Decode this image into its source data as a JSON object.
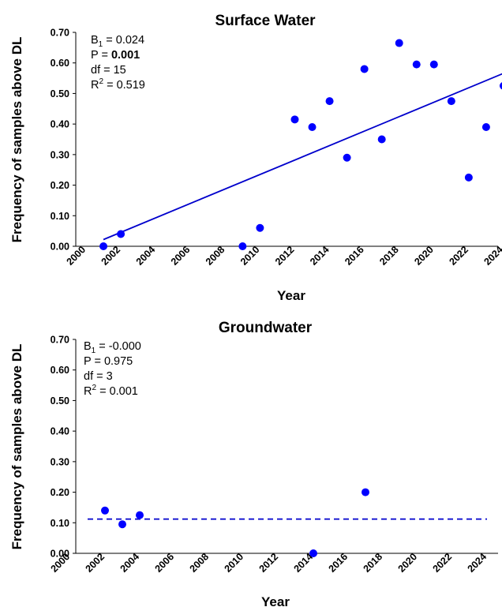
{
  "chart_data": [
    {
      "type": "scatter",
      "title": "Surface Water",
      "xlabel": "Year",
      "ylabel": "Frequency of samples above DL",
      "xlim": [
        2000,
        2024
      ],
      "ylim": [
        0,
        0.7
      ],
      "x_ticks": [
        "2000",
        "2002",
        "2004",
        "2006",
        "2008",
        "2010",
        "2012",
        "2014",
        "2016",
        "2018",
        "2020",
        "2022",
        "2024"
      ],
      "y_ticks": [
        "0.00",
        "0.10",
        "0.20",
        "0.30",
        "0.40",
        "0.50",
        "0.60",
        "0.70"
      ],
      "stats": {
        "b1_label": "B",
        "b1_sub": "1",
        "b1_value": " = 0.024",
        "p_label": "P = ",
        "p_value": "0.001",
        "p_bold": true,
        "df": "df = 15",
        "r2_label": "R",
        "r2_sup": "2",
        "r2_value": " = 0.519"
      },
      "series": [
        {
          "x": [
            2001,
            2002,
            2009,
            2010,
            2012,
            2013,
            2014,
            2015,
            2016,
            2017,
            2018,
            2019,
            2020,
            2021,
            2022,
            2023,
            2024
          ],
          "y": [
            0.0,
            0.04,
            0.0,
            0.06,
            0.415,
            0.39,
            0.475,
            0.29,
            0.58,
            0.35,
            0.665,
            0.595,
            0.595,
            0.475,
            0.225,
            0.39,
            0.525
          ]
        }
      ],
      "trendline": {
        "style": "solid",
        "x": [
          2001,
          2024
        ],
        "y": [
          0.022,
          0.566
        ]
      },
      "colors": {
        "points": "#0000ff",
        "trendline": "#0000cc"
      },
      "grid": false
    },
    {
      "type": "scatter",
      "title": "Groundwater",
      "xlabel": "Year",
      "ylabel": "Frequency of samples above DL",
      "xlim": [
        2000,
        2024
      ],
      "ylim": [
        0,
        0.7
      ],
      "x_ticks": [
        "2000",
        "2002",
        "2004",
        "2006",
        "2008",
        "2010",
        "2012",
        "2014",
        "2016",
        "2018",
        "2020",
        "2022",
        "2024"
      ],
      "y_ticks": [
        "0.00",
        "0.10",
        "0.20",
        "0.30",
        "0.40",
        "0.50",
        "0.60",
        "0.70"
      ],
      "stats": {
        "b1_label": "B",
        "b1_sub": "1",
        "b1_value": " = -0.000",
        "p_label": "P = ",
        "p_value": "0.975",
        "p_bold": false,
        "df": "df = 3",
        "r2_label": "R",
        "r2_sup": "2",
        "r2_value": " = 0.001"
      },
      "series": [
        {
          "x": [
            2002,
            2003,
            2004,
            2014,
            2017
          ],
          "y": [
            0.14,
            0.095,
            0.125,
            0.0,
            0.2
          ]
        }
      ],
      "trendline": {
        "style": "dashed",
        "x": [
          2001,
          2024
        ],
        "y": [
          0.112,
          0.112
        ]
      },
      "colors": {
        "points": "#0000ff",
        "trendline": "#0000cc"
      },
      "grid": false
    }
  ]
}
